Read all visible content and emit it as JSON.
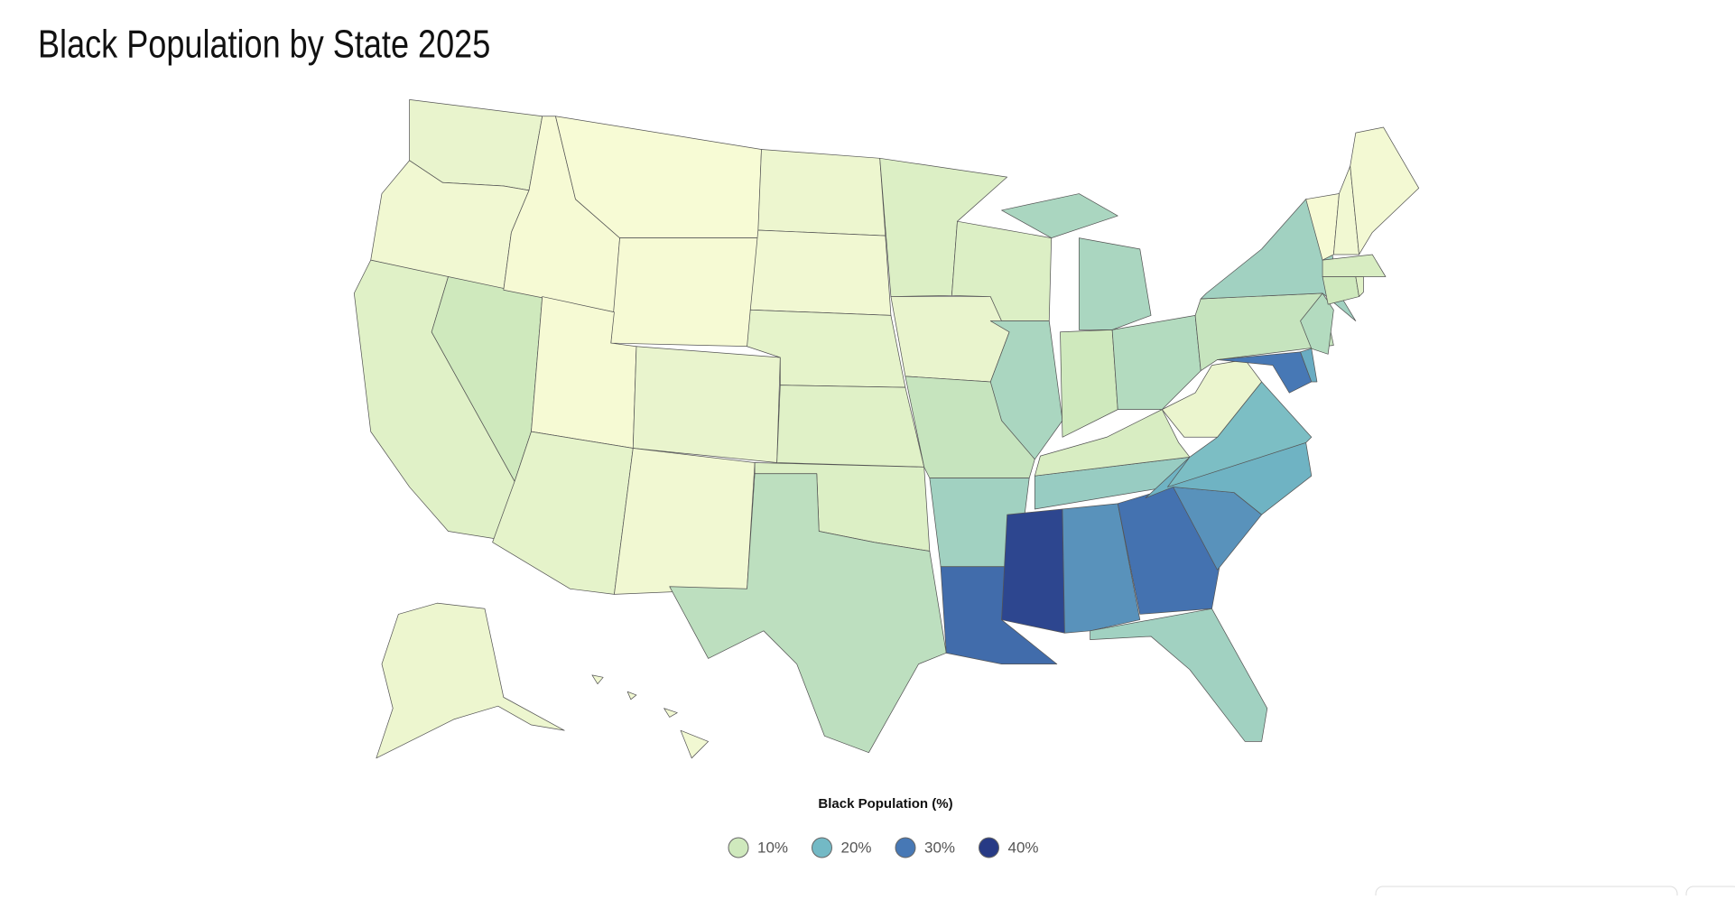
{
  "title": "Black Population by State 2025",
  "color_min": "#fafcd7",
  "legend": {
    "title": "Black Population (%)",
    "items": [
      {
        "value": 10,
        "label": "10%",
        "color": "#cfe9bd"
      },
      {
        "value": 20,
        "label": "20%",
        "color": "#73b9c5"
      },
      {
        "value": 30,
        "label": "30%",
        "color": "#4778b5"
      },
      {
        "value": 40,
        "label": "40%",
        "color": "#273a85"
      }
    ]
  },
  "region_values": [
    4,
    2,
    6,
    10,
    1,
    0.6,
    1,
    1,
    4,
    5,
    2,
    3,
    2,
    5,
    6,
    7,
    12,
    7,
    4,
    11,
    15,
    32,
    7,
    14,
    38,
    26,
    16,
    8,
    10,
    13,
    14,
    31,
    15,
    26,
    21,
    19,
    3.6,
    11,
    15,
    30,
    22,
    13,
    10,
    6,
    8,
    1,
    2,
    1.6,
    3,
    2
  ]
}
